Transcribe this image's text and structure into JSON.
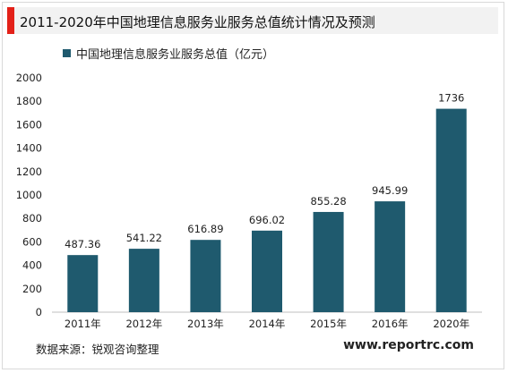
{
  "header": {
    "title": "2011-2020年中国地理信息服务业服务总值统计情况及预测"
  },
  "footer": {
    "source": "数据来源：锐观咨询整理",
    "website": "www.reportrc.com"
  },
  "colors": {
    "bar": "#1f5a6e",
    "accent": "#e32119"
  },
  "chart_data": {
    "type": "bar",
    "title": "2011-2020年中国地理信息服务业服务总值统计情况及预测",
    "xlabel": "",
    "ylabel": "",
    "ylim": [
      0,
      2000
    ],
    "yticks": [
      0,
      200,
      400,
      600,
      800,
      1000,
      1200,
      1400,
      1600,
      1800,
      2000
    ],
    "grid": false,
    "legend_position": "top-left",
    "categories": [
      "2011年",
      "2012年",
      "2013年",
      "2014年",
      "2015年",
      "2016年",
      "2020年"
    ],
    "series": [
      {
        "name": "中国地理信息服务业服务总值（亿元）",
        "values": [
          487.36,
          541.22,
          616.89,
          696.02,
          855.28,
          945.99,
          1736
        ],
        "labels": [
          "487.36",
          "541.22",
          "616.89",
          "696.02",
          "855.28",
          "945.99",
          "1736"
        ]
      }
    ]
  }
}
